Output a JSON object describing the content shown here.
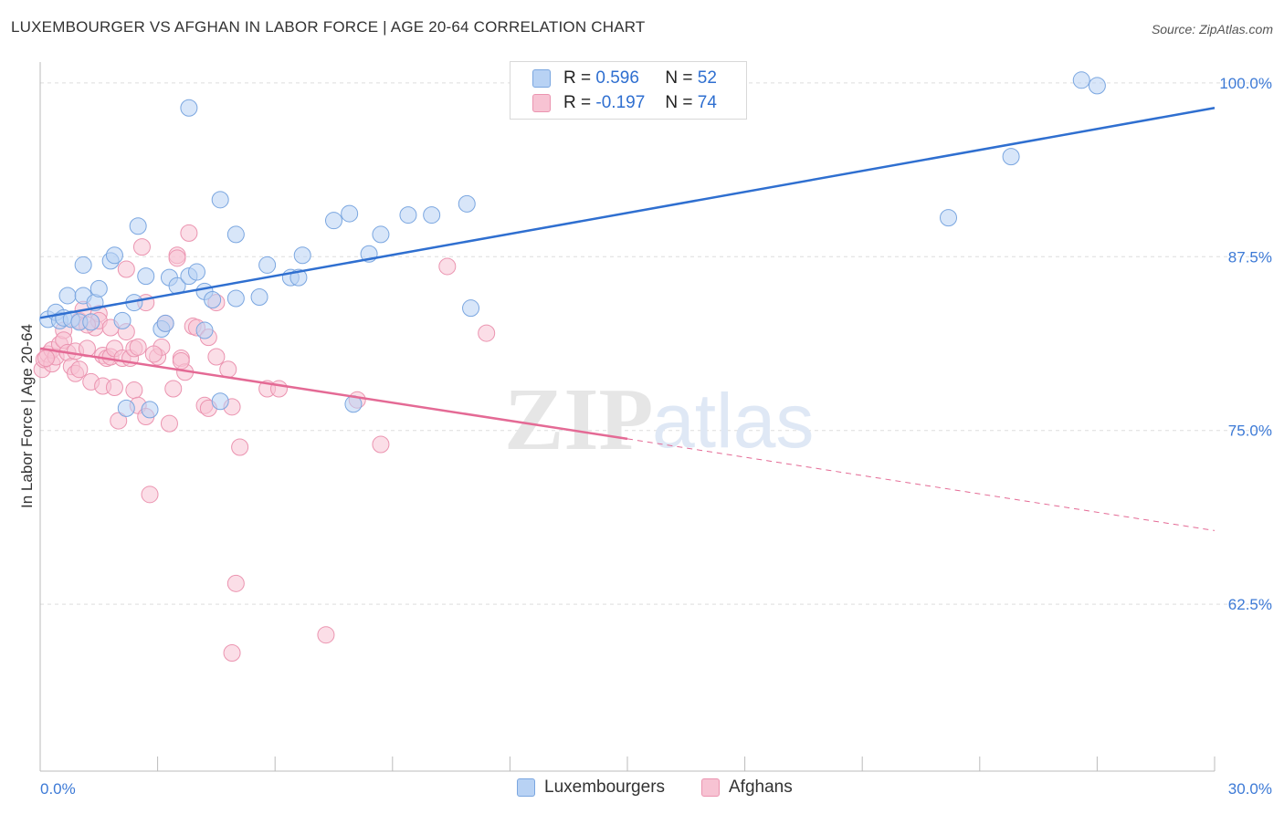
{
  "title": "LUXEMBOURGER VS AFGHAN IN LABOR FORCE | AGE 20-64 CORRELATION CHART",
  "source": "Source: ZipAtlas.com",
  "watermark": {
    "zip": "ZIP",
    "atlas": "atlas"
  },
  "colors": {
    "blue_fill": "#b8d2f4",
    "blue_stroke": "#7aa6e0",
    "blue_line": "#2f6fd0",
    "pink_fill": "#f7c3d3",
    "pink_stroke": "#eb94b0",
    "pink_line": "#e46a95",
    "tick_text": "#3d7ad6",
    "grid": "#dddddd"
  },
  "legend": {
    "rows": [
      {
        "r_label": "R =",
        "r_value": "0.596",
        "n_label": "N =",
        "n_value": "52"
      },
      {
        "r_label": "R =",
        "r_value": "-0.197",
        "n_label": "N =",
        "n_value": "74"
      }
    ]
  },
  "bottom_legend": {
    "blue": "Luxembourgers",
    "pink": "Afghans"
  },
  "chart_data": {
    "type": "scatter",
    "title": "LUXEMBOURGER VS AFGHAN IN LABOR FORCE | AGE 20-64 CORRELATION CHART",
    "xlabel": "",
    "ylabel": "In Labor Force | Age 20-64",
    "xlim": [
      0,
      30
    ],
    "ylim": [
      50.5,
      101.5
    ],
    "x_tick_labels": [
      "0.0%",
      "30.0%"
    ],
    "y_ticks": [
      62.5,
      75.0,
      87.5,
      100.0
    ],
    "y_tick_labels": [
      "62.5%",
      "75.0%",
      "87.5%",
      "100.0%"
    ],
    "series": [
      {
        "name": "Luxembourgers",
        "color": "blue",
        "points": [
          [
            0.2,
            83.0
          ],
          [
            0.4,
            83.5
          ],
          [
            0.5,
            82.9
          ],
          [
            0.6,
            83.1
          ],
          [
            0.7,
            84.7
          ],
          [
            0.8,
            83.0
          ],
          [
            1.0,
            82.8
          ],
          [
            1.1,
            84.7
          ],
          [
            1.1,
            86.9
          ],
          [
            1.3,
            82.8
          ],
          [
            1.4,
            84.2
          ],
          [
            1.5,
            85.2
          ],
          [
            1.8,
            87.2
          ],
          [
            1.9,
            87.6
          ],
          [
            2.1,
            82.9
          ],
          [
            2.2,
            76.6
          ],
          [
            2.4,
            84.2
          ],
          [
            2.5,
            89.7
          ],
          [
            2.7,
            86.1
          ],
          [
            2.8,
            76.5
          ],
          [
            3.1,
            82.3
          ],
          [
            3.2,
            82.7
          ],
          [
            3.3,
            86.0
          ],
          [
            3.5,
            85.4
          ],
          [
            3.8,
            86.1
          ],
          [
            3.8,
            98.2
          ],
          [
            4.0,
            86.4
          ],
          [
            4.2,
            85.0
          ],
          [
            4.2,
            82.2
          ],
          [
            4.4,
            84.4
          ],
          [
            4.6,
            91.6
          ],
          [
            4.6,
            77.1
          ],
          [
            5.0,
            89.1
          ],
          [
            5.0,
            84.5
          ],
          [
            5.6,
            84.6
          ],
          [
            5.8,
            86.9
          ],
          [
            6.4,
            86.0
          ],
          [
            6.6,
            86.0
          ],
          [
            6.7,
            87.6
          ],
          [
            7.5,
            90.1
          ],
          [
            7.9,
            90.6
          ],
          [
            8.0,
            76.9
          ],
          [
            8.4,
            87.7
          ],
          [
            8.7,
            89.1
          ],
          [
            9.4,
            90.5
          ],
          [
            10.0,
            90.5
          ],
          [
            10.9,
            91.3
          ],
          [
            11.0,
            83.8
          ],
          [
            23.2,
            90.3
          ],
          [
            24.8,
            94.7
          ],
          [
            26.6,
            100.2
          ],
          [
            27.0,
            99.8
          ]
        ]
      },
      {
        "name": "Afghans",
        "color": "pink",
        "points": [
          [
            0.05,
            79.4
          ],
          [
            0.1,
            80.1
          ],
          [
            0.2,
            80.5
          ],
          [
            0.3,
            79.8
          ],
          [
            0.3,
            80.8
          ],
          [
            0.4,
            80.3
          ],
          [
            0.5,
            81.2
          ],
          [
            0.6,
            82.2
          ],
          [
            0.6,
            81.5
          ],
          [
            0.7,
            80.6
          ],
          [
            0.8,
            79.6
          ],
          [
            0.9,
            79.1
          ],
          [
            0.9,
            80.7
          ],
          [
            1.0,
            79.4
          ],
          [
            1.0,
            82.9
          ],
          [
            1.1,
            83.7
          ],
          [
            1.2,
            80.9
          ],
          [
            1.3,
            78.5
          ],
          [
            1.4,
            82.4
          ],
          [
            1.5,
            83.4
          ],
          [
            1.5,
            82.9
          ],
          [
            1.6,
            78.2
          ],
          [
            1.6,
            80.4
          ],
          [
            1.7,
            80.2
          ],
          [
            1.8,
            82.4
          ],
          [
            1.8,
            80.3
          ],
          [
            1.9,
            78.1
          ],
          [
            1.9,
            80.9
          ],
          [
            2.0,
            75.7
          ],
          [
            2.1,
            80.2
          ],
          [
            2.2,
            82.1
          ],
          [
            2.2,
            86.6
          ],
          [
            2.3,
            80.2
          ],
          [
            2.4,
            77.9
          ],
          [
            2.4,
            80.9
          ],
          [
            2.5,
            81.0
          ],
          [
            2.5,
            76.8
          ],
          [
            2.6,
            88.2
          ],
          [
            2.7,
            76.0
          ],
          [
            2.7,
            84.2
          ],
          [
            2.8,
            70.4
          ],
          [
            3.0,
            80.3
          ],
          [
            3.1,
            81.0
          ],
          [
            3.2,
            82.7
          ],
          [
            3.3,
            75.5
          ],
          [
            3.4,
            78.0
          ],
          [
            3.5,
            87.6
          ],
          [
            3.5,
            87.4
          ],
          [
            3.6,
            80.2
          ],
          [
            3.7,
            79.2
          ],
          [
            3.8,
            89.2
          ],
          [
            3.9,
            82.5
          ],
          [
            4.0,
            82.4
          ],
          [
            4.2,
            76.8
          ],
          [
            4.3,
            76.6
          ],
          [
            4.3,
            81.7
          ],
          [
            4.5,
            84.2
          ],
          [
            4.5,
            80.3
          ],
          [
            4.8,
            79.4
          ],
          [
            4.9,
            76.7
          ],
          [
            4.9,
            59.0
          ],
          [
            5.0,
            64.0
          ],
          [
            5.1,
            73.8
          ],
          [
            5.8,
            78.0
          ],
          [
            6.1,
            78.0
          ],
          [
            7.3,
            60.3
          ],
          [
            8.1,
            77.2
          ],
          [
            8.7,
            74.0
          ],
          [
            10.4,
            86.8
          ],
          [
            11.4,
            82.0
          ],
          [
            0.15,
            80.2
          ],
          [
            1.2,
            82.6
          ],
          [
            2.9,
            80.5
          ],
          [
            3.6,
            80.0
          ]
        ]
      }
    ],
    "trendlines": [
      {
        "series": "Luxembourgers",
        "x": [
          0,
          30
        ],
        "y": [
          83.1,
          98.2
        ],
        "style": "solid"
      },
      {
        "series": "Afghans",
        "x": [
          0,
          15
        ],
        "y": [
          80.9,
          74.4
        ],
        "style": "solid"
      },
      {
        "series": "Afghans",
        "x": [
          15,
          30
        ],
        "y": [
          74.4,
          67.8
        ],
        "style": "dashed"
      }
    ]
  }
}
